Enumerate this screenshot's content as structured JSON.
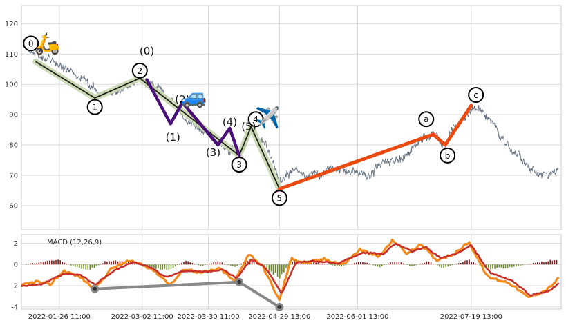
{
  "chart_data": [
    {
      "panel": "price",
      "type": "line",
      "x_date_range": [
        "2022-01-10",
        "2022-08-26"
      ],
      "ylim": [
        52,
        126
      ],
      "yticks": [
        60,
        70,
        80,
        90,
        100,
        110,
        120
      ],
      "grid": true,
      "colors": {
        "price": "#4c5a6b",
        "primary_wave": "#1b1f14",
        "primary_halo": "#c8d6b0",
        "intermediate_wave": "#4b0f78",
        "correction_wave": "#e84a10",
        "grid": "#d9d9d9",
        "frame": "#cccccc"
      },
      "price_series_anchors": [
        {
          "x": "2022-01-13",
          "y": 112
        },
        {
          "x": "2022-01-20",
          "y": 108
        },
        {
          "x": "2022-01-26",
          "y": 107
        },
        {
          "x": "2022-02-02",
          "y": 103
        },
        {
          "x": "2022-02-08",
          "y": 100
        },
        {
          "x": "2022-02-14",
          "y": 96
        },
        {
          "x": "2022-02-20",
          "y": 98
        },
        {
          "x": "2022-03-01",
          "y": 102
        },
        {
          "x": "2022-03-08",
          "y": 99
        },
        {
          "x": "2022-03-13",
          "y": 95
        },
        {
          "x": "2022-03-18",
          "y": 90
        },
        {
          "x": "2022-03-24",
          "y": 86
        },
        {
          "x": "2022-03-30",
          "y": 84
        },
        {
          "x": "2022-04-05",
          "y": 80
        },
        {
          "x": "2022-04-12",
          "y": 77
        },
        {
          "x": "2022-04-18",
          "y": 86
        },
        {
          "x": "2022-04-24",
          "y": 79
        },
        {
          "x": "2022-04-29",
          "y": 66
        },
        {
          "x": "2022-05-05",
          "y": 73
        },
        {
          "x": "2022-05-12",
          "y": 70
        },
        {
          "x": "2022-05-20",
          "y": 72
        },
        {
          "x": "2022-05-28",
          "y": 71
        },
        {
          "x": "2022-06-05",
          "y": 70
        },
        {
          "x": "2022-06-12",
          "y": 74
        },
        {
          "x": "2022-06-20",
          "y": 76
        },
        {
          "x": "2022-06-28",
          "y": 82
        },
        {
          "x": "2022-07-02",
          "y": 84
        },
        {
          "x": "2022-07-08",
          "y": 80
        },
        {
          "x": "2022-07-14",
          "y": 88
        },
        {
          "x": "2022-07-20",
          "y": 93
        },
        {
          "x": "2022-07-26",
          "y": 88
        },
        {
          "x": "2022-08-02",
          "y": 82
        },
        {
          "x": "2022-08-10",
          "y": 74
        },
        {
          "x": "2022-08-16",
          "y": 70
        },
        {
          "x": "2022-08-21",
          "y": 70
        },
        {
          "x": "2022-08-25",
          "y": 72
        }
      ],
      "primary_waves": [
        {
          "x": "2022-01-16",
          "y": 107.5
        },
        {
          "x": "2022-02-10",
          "y": 95.5
        },
        {
          "x": "2022-03-01",
          "y": 102
        },
        {
          "x": "2022-04-12",
          "y": 76.5
        },
        {
          "x": "2022-04-17",
          "y": 86
        },
        {
          "x": "2022-04-29",
          "y": 65.5
        }
      ],
      "intermediate_waves": [
        {
          "x": "2022-03-04",
          "y": 101.5
        },
        {
          "x": "2022-03-14",
          "y": 87
        },
        {
          "x": "2022-03-19",
          "y": 94
        },
        {
          "x": "2022-04-03",
          "y": 80
        },
        {
          "x": "2022-04-08",
          "y": 85.5
        },
        {
          "x": "2022-04-12",
          "y": 76.5
        }
      ],
      "correction_waves": [
        {
          "x": "2022-04-29",
          "y": 65.5
        },
        {
          "x": "2022-07-03",
          "y": 83.5
        },
        {
          "x": "2022-07-08",
          "y": 80
        },
        {
          "x": "2022-07-19",
          "y": 93
        }
      ],
      "wave_labels": [
        {
          "text": "0",
          "style": "circle",
          "x": "2022-01-14",
          "y": 113.5
        },
        {
          "text": "1",
          "style": "circle",
          "x": "2022-02-10",
          "y": 92.5
        },
        {
          "text": "2",
          "style": "circle",
          "x": "2022-03-01",
          "y": 104.5
        },
        {
          "text": "3",
          "style": "circle",
          "x": "2022-04-12",
          "y": 73.5
        },
        {
          "text": "4",
          "style": "circle",
          "x": "2022-04-19",
          "y": 88.5
        },
        {
          "text": "5",
          "style": "circle",
          "x": "2022-04-29",
          "y": 62.5
        },
        {
          "text": "a",
          "style": "circle",
          "x": "2022-06-30",
          "y": 88.5
        },
        {
          "text": "b",
          "style": "circle",
          "x": "2022-07-09",
          "y": 76.5
        },
        {
          "text": "c",
          "style": "circle",
          "x": "2022-07-21",
          "y": 96.5
        },
        {
          "text": "(0)",
          "style": "paren",
          "x": "2022-03-04",
          "y": 111
        },
        {
          "text": "(1)",
          "style": "paren",
          "x": "2022-03-15",
          "y": 82.5
        },
        {
          "text": "(2)",
          "style": "paren",
          "x": "2022-03-19",
          "y": 95
        },
        {
          "text": "(3)",
          "style": "paren",
          "x": "2022-04-01",
          "y": 77.5
        },
        {
          "text": "(4)",
          "style": "paren",
          "x": "2022-04-08",
          "y": 87.5
        },
        {
          "text": "(5)",
          "style": "paren",
          "x": "2022-04-16",
          "y": 86
        }
      ],
      "icons": [
        {
          "name": "scooter-icon",
          "glyph": "🛵",
          "x": "2022-01-21",
          "y": 113.5
        },
        {
          "name": "car-icon",
          "glyph": "🚙",
          "x": "2022-03-24",
          "y": 96
        },
        {
          "name": "airplane-icon",
          "glyph": "✈️",
          "x": "2022-04-24",
          "y": 89
        }
      ],
      "xticks": [
        {
          "label": "2022-01-26 11:00",
          "x": "2022-01-26"
        },
        {
          "label": "2022-03-02 11:00",
          "x": "2022-03-02"
        },
        {
          "label": "2022-03-30 11:00",
          "x": "2022-03-30"
        },
        {
          "label": "2022-04-29 13:00",
          "x": "2022-04-29"
        },
        {
          "label": "2022-06-01 13:00",
          "x": "2022-06-01"
        },
        {
          "label": "2022-07-19 13:00",
          "x": "2022-07-19"
        }
      ]
    },
    {
      "panel": "macd",
      "type": "line",
      "title": "MACD (12,26,9)",
      "ylim": [
        -4.2,
        2.8
      ],
      "yticks": [
        -4,
        -2,
        0,
        2
      ],
      "grid": true,
      "colors": {
        "macd_line": "#f28a1c",
        "signal_line": "#c8302a",
        "hist_positive": "#8b1a1a",
        "hist_negative": "#6b8e23",
        "divergence": "#888888"
      },
      "macd_anchors": [
        {
          "x": "2022-01-10",
          "y": -2.0
        },
        {
          "x": "2022-01-16",
          "y": -1.6
        },
        {
          "x": "2022-01-22",
          "y": -1.9
        },
        {
          "x": "2022-01-28",
          "y": -0.6
        },
        {
          "x": "2022-02-04",
          "y": -1.2
        },
        {
          "x": "2022-02-10",
          "y": -2.3
        },
        {
          "x": "2022-02-17",
          "y": -0.4
        },
        {
          "x": "2022-02-24",
          "y": 0.3
        },
        {
          "x": "2022-03-01",
          "y": 0.1
        },
        {
          "x": "2022-03-06",
          "y": -0.4
        },
        {
          "x": "2022-03-14",
          "y": -1.9
        },
        {
          "x": "2022-03-20",
          "y": -0.4
        },
        {
          "x": "2022-03-27",
          "y": -0.8
        },
        {
          "x": "2022-04-04",
          "y": -0.4
        },
        {
          "x": "2022-04-10",
          "y": -1.6
        },
        {
          "x": "2022-04-16",
          "y": 1.0
        },
        {
          "x": "2022-04-22",
          "y": -0.2
        },
        {
          "x": "2022-04-29",
          "y": -3.4
        },
        {
          "x": "2022-05-04",
          "y": 0.6
        },
        {
          "x": "2022-05-10",
          "y": 0.1
        },
        {
          "x": "2022-05-18",
          "y": 0.5
        },
        {
          "x": "2022-05-26",
          "y": 0.0
        },
        {
          "x": "2022-06-02",
          "y": 1.4
        },
        {
          "x": "2022-06-10",
          "y": 0.7
        },
        {
          "x": "2022-06-16",
          "y": 2.3
        },
        {
          "x": "2022-06-22",
          "y": 1.0
        },
        {
          "x": "2022-06-28",
          "y": 1.9
        },
        {
          "x": "2022-07-04",
          "y": 0.4
        },
        {
          "x": "2022-07-12",
          "y": 1.0
        },
        {
          "x": "2022-07-18",
          "y": 2.1
        },
        {
          "x": "2022-07-26",
          "y": -1.2
        },
        {
          "x": "2022-08-04",
          "y": -1.7
        },
        {
          "x": "2022-08-12",
          "y": -3.1
        },
        {
          "x": "2022-08-20",
          "y": -2.4
        },
        {
          "x": "2022-08-25",
          "y": -1.3
        }
      ],
      "signal_anchors": [
        {
          "x": "2022-01-10",
          "y": -2.0
        },
        {
          "x": "2022-01-18",
          "y": -1.9
        },
        {
          "x": "2022-01-28",
          "y": -0.9
        },
        {
          "x": "2022-02-04",
          "y": -1.0
        },
        {
          "x": "2022-02-10",
          "y": -1.9
        },
        {
          "x": "2022-02-18",
          "y": -0.6
        },
        {
          "x": "2022-02-26",
          "y": 0.2
        },
        {
          "x": "2022-03-04",
          "y": -0.1
        },
        {
          "x": "2022-03-12",
          "y": -1.2
        },
        {
          "x": "2022-03-20",
          "y": -0.6
        },
        {
          "x": "2022-03-28",
          "y": -0.7
        },
        {
          "x": "2022-04-05",
          "y": -0.5
        },
        {
          "x": "2022-04-11",
          "y": -1.3
        },
        {
          "x": "2022-04-17",
          "y": 0.5
        },
        {
          "x": "2022-04-23",
          "y": -0.3
        },
        {
          "x": "2022-04-30",
          "y": -2.7
        },
        {
          "x": "2022-05-06",
          "y": 0.2
        },
        {
          "x": "2022-05-14",
          "y": 0.3
        },
        {
          "x": "2022-05-24",
          "y": 0.1
        },
        {
          "x": "2022-06-03",
          "y": 1.1
        },
        {
          "x": "2022-06-12",
          "y": 1.0
        },
        {
          "x": "2022-06-17",
          "y": 2.0
        },
        {
          "x": "2022-06-24",
          "y": 1.2
        },
        {
          "x": "2022-06-30",
          "y": 1.6
        },
        {
          "x": "2022-07-06",
          "y": 0.6
        },
        {
          "x": "2022-07-13",
          "y": 1.0
        },
        {
          "x": "2022-07-19",
          "y": 1.8
        },
        {
          "x": "2022-07-27",
          "y": -0.8
        },
        {
          "x": "2022-08-05",
          "y": -1.5
        },
        {
          "x": "2022-08-13",
          "y": -2.9
        },
        {
          "x": "2022-08-21",
          "y": -2.5
        },
        {
          "x": "2022-08-25",
          "y": -1.8
        }
      ],
      "histogram_anchors": [
        {
          "x": "2022-01-10",
          "y": 0.0
        },
        {
          "x": "2022-01-18",
          "y": 0.2
        },
        {
          "x": "2022-01-25",
          "y": 0.45
        },
        {
          "x": "2022-02-01",
          "y": -0.2
        },
        {
          "x": "2022-02-08",
          "y": -0.5
        },
        {
          "x": "2022-02-15",
          "y": 0.35
        },
        {
          "x": "2022-02-24",
          "y": 0.25
        },
        {
          "x": "2022-03-06",
          "y": -0.3
        },
        {
          "x": "2022-03-13",
          "y": -0.55
        },
        {
          "x": "2022-03-20",
          "y": 0.35
        },
        {
          "x": "2022-03-27",
          "y": -0.15
        },
        {
          "x": "2022-04-03",
          "y": 0.3
        },
        {
          "x": "2022-04-10",
          "y": -0.25
        },
        {
          "x": "2022-04-16",
          "y": 0.45
        },
        {
          "x": "2022-04-23",
          "y": -0.35
        },
        {
          "x": "2022-04-29",
          "y": -1.1
        },
        {
          "x": "2022-05-05",
          "y": 0.35
        },
        {
          "x": "2022-05-15",
          "y": 0.15
        },
        {
          "x": "2022-05-25",
          "y": -0.2
        },
        {
          "x": "2022-06-03",
          "y": 0.3
        },
        {
          "x": "2022-06-10",
          "y": -0.25
        },
        {
          "x": "2022-06-17",
          "y": 0.35
        },
        {
          "x": "2022-06-24",
          "y": -0.2
        },
        {
          "x": "2022-07-01",
          "y": 0.3
        },
        {
          "x": "2022-07-07",
          "y": -0.35
        },
        {
          "x": "2022-07-18",
          "y": 0.4
        },
        {
          "x": "2022-07-26",
          "y": -0.45
        },
        {
          "x": "2022-08-05",
          "y": -0.25
        },
        {
          "x": "2022-08-15",
          "y": 0.15
        },
        {
          "x": "2022-08-25",
          "y": 0.5
        }
      ],
      "divergence_points": [
        {
          "x": "2022-02-10",
          "y": -2.3
        },
        {
          "x": "2022-04-12",
          "y": -1.65
        },
        {
          "x": "2022-04-29",
          "y": -4.0
        }
      ],
      "xticks": [
        {
          "label": "2022-01-26 11:00",
          "x": "2022-01-26"
        },
        {
          "label": "2022-03-02 11:00",
          "x": "2022-03-02"
        },
        {
          "label": "2022-03-30 11:00",
          "x": "2022-03-30"
        },
        {
          "label": "2022-04-29 13:00",
          "x": "2022-04-29"
        },
        {
          "label": "2022-06-01 13:00",
          "x": "2022-06-01"
        },
        {
          "label": "2022-07-19 13:00",
          "x": "2022-07-19"
        }
      ]
    }
  ]
}
